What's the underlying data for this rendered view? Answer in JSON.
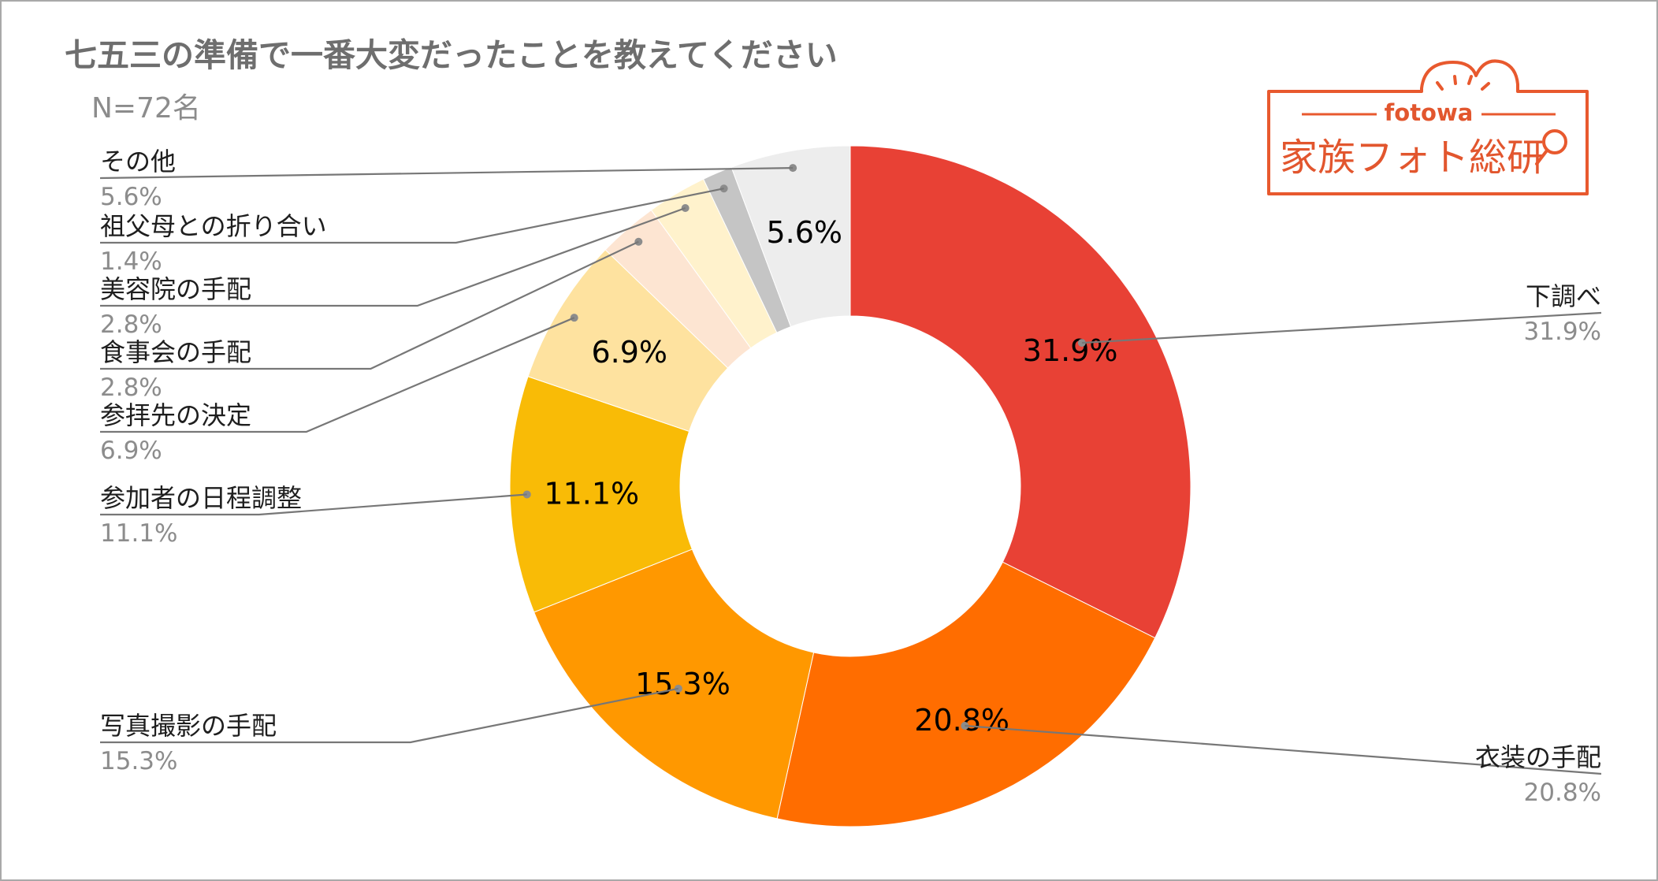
{
  "chart_data": {
    "type": "pie",
    "title": "七五三の準備で一番大変だったことを教えてください",
    "subtitle": "N=72名",
    "donut": true,
    "slices": [
      {
        "label": "下調べ",
        "value": 31.9,
        "display": "31.9%",
        "color": "#e84135",
        "inside_label": "31.9%"
      },
      {
        "label": "衣装の手配",
        "value": 20.8,
        "display": "20.8%",
        "color": "#ff6d00",
        "inside_label": "20.8%"
      },
      {
        "label": "写真撮影の手配",
        "value": 15.3,
        "display": "15.3%",
        "color": "#ff9800",
        "inside_label": "15.3%"
      },
      {
        "label": "参加者の日程調整",
        "value": 11.1,
        "display": "11.1%",
        "color": "#f9bb06",
        "inside_label": "11.1%"
      },
      {
        "label": "参拝先の決定",
        "value": 6.9,
        "display": "6.9%",
        "color": "#fee29f",
        "inside_label": "6.9%"
      },
      {
        "label": "食事会の手配",
        "value": 2.8,
        "display": "2.8%",
        "color": "#fde5d2",
        "inside_label": ""
      },
      {
        "label": "美容院の手配",
        "value": 2.8,
        "display": "2.8%",
        "color": "#fff2cc",
        "inside_label": ""
      },
      {
        "label": "祖父母との折り合い",
        "value": 1.4,
        "display": "1.4%",
        "color": "#c5c5c5",
        "inside_label": ""
      },
      {
        "label": "その他",
        "value": 5.6,
        "display": "5.6%",
        "color": "#ededed",
        "inside_label": "5.6%"
      }
    ]
  },
  "logo": {
    "brand": "fotowa",
    "name": "家族フォト総研"
  }
}
